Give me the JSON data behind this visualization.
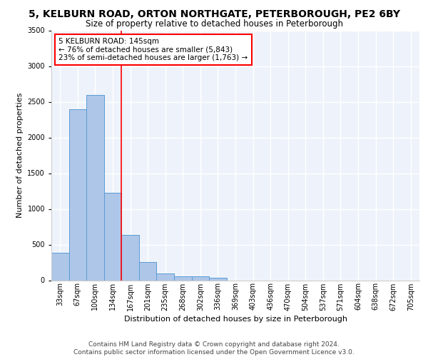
{
  "title": "5, KELBURN ROAD, ORTON NORTHGATE, PETERBOROUGH, PE2 6BY",
  "subtitle": "Size of property relative to detached houses in Peterborough",
  "xlabel": "Distribution of detached houses by size in Peterborough",
  "ylabel": "Number of detached properties",
  "categories": [
    "33sqm",
    "67sqm",
    "100sqm",
    "134sqm",
    "167sqm",
    "201sqm",
    "235sqm",
    "268sqm",
    "302sqm",
    "336sqm",
    "369sqm",
    "403sqm",
    "436sqm",
    "470sqm",
    "504sqm",
    "537sqm",
    "571sqm",
    "604sqm",
    "638sqm",
    "672sqm",
    "705sqm"
  ],
  "values": [
    390,
    2400,
    2600,
    1230,
    640,
    255,
    95,
    60,
    55,
    40,
    0,
    0,
    0,
    0,
    0,
    0,
    0,
    0,
    0,
    0,
    0
  ],
  "bar_color": "#aec6e8",
  "bar_edge_color": "#5b9bd5",
  "ylim": [
    0,
    3500
  ],
  "yticks": [
    0,
    500,
    1000,
    1500,
    2000,
    2500,
    3000,
    3500
  ],
  "property_line_x": 3.5,
  "property_line_color": "red",
  "annotation_line1": "5 KELBURN ROAD: 145sqm",
  "annotation_line2": "← 76% of detached houses are smaller (5,843)",
  "annotation_line3": "23% of semi-detached houses are larger (1,763) →",
  "annotation_box_color": "white",
  "annotation_box_edge_color": "red",
  "footer": "Contains HM Land Registry data © Crown copyright and database right 2024.\nContains public sector information licensed under the Open Government Licence v3.0.",
  "bg_color": "#eef3fb",
  "grid_color": "#ffffff",
  "title_fontsize": 10,
  "subtitle_fontsize": 8.5,
  "axis_label_fontsize": 8,
  "tick_fontsize": 7,
  "footer_fontsize": 6.5
}
